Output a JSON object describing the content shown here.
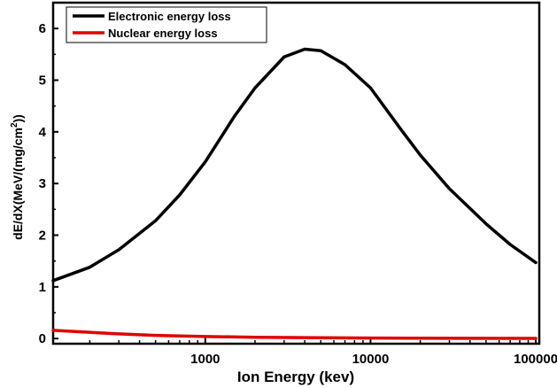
{
  "chart_data": {
    "type": "line",
    "title": "",
    "xlabel": "Ion Energy (kev)",
    "ylabel_main": "dE/dX(MeV/(mg/cm",
    "ylabel_sup": "2",
    "ylabel_end": "))",
    "xscale": "log",
    "xlim": [
      120,
      105000
    ],
    "ylim": [
      -0.1,
      6.5
    ],
    "xticks": [
      1000,
      10000,
      100000
    ],
    "xtick_labels": [
      "1000",
      "10000",
      "100000"
    ],
    "yticks": [
      0,
      1,
      2,
      3,
      4,
      5,
      6
    ],
    "ytick_labels": [
      "0",
      "1",
      "2",
      "3",
      "4",
      "5",
      "6"
    ],
    "grid": false,
    "legend_position": "top-left",
    "series": [
      {
        "name": "Electronic energy loss",
        "color": "#000000",
        "x": [
          120,
          200,
          300,
          500,
          700,
          1000,
          1500,
          2000,
          3000,
          4000,
          5000,
          7000,
          10000,
          15000,
          20000,
          30000,
          50000,
          70000,
          100000
        ],
        "y": [
          1.12,
          1.38,
          1.72,
          2.28,
          2.78,
          3.42,
          4.3,
          4.85,
          5.45,
          5.6,
          5.57,
          5.3,
          4.85,
          4.08,
          3.55,
          2.9,
          2.22,
          1.82,
          1.47
        ]
      },
      {
        "name": "Nuclear energy loss",
        "color": "#e00000",
        "x": [
          120,
          200,
          300,
          500,
          1000,
          2000,
          5000,
          10000,
          30000,
          100000
        ],
        "y": [
          0.16,
          0.12,
          0.09,
          0.06,
          0.04,
          0.025,
          0.015,
          0.01,
          0.006,
          0.003
        ]
      }
    ]
  }
}
